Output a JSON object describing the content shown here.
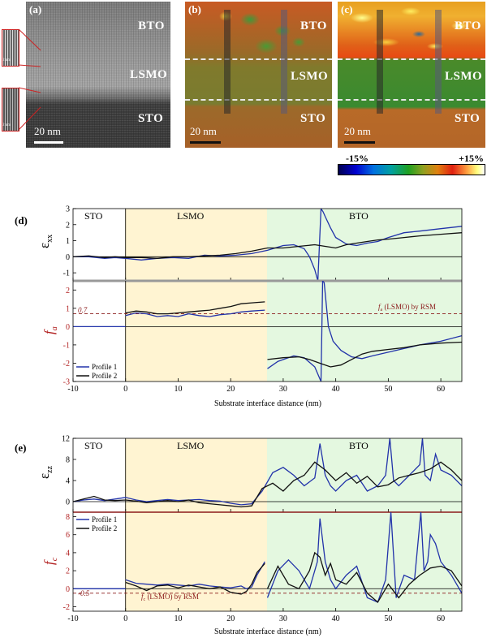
{
  "panel_a": {
    "label": "(a)",
    "bto": "BTO",
    "lsmo": "LSMO",
    "sto": "STO",
    "scale": "20 nm",
    "inset_scale": "2 nm"
  },
  "panel_b": {
    "label": "(b)",
    "bto": "BTO",
    "lsmo": "LSMO",
    "sto": "STO",
    "scale": "20 nm"
  },
  "panel_c": {
    "label": "(c)",
    "bto": "BTO",
    "lsmo": "LSMO",
    "sto": "STO",
    "scale": "20 nm"
  },
  "colorbar": {
    "min_label": "-15%",
    "max_label": "+15%"
  },
  "colors": {
    "profile1": "#2233aa",
    "profile2": "#111111",
    "lsmo_region": "#fff4d2",
    "bto_region": "#e4f8e0",
    "ref_line": "#8b1a1a"
  },
  "panel_d": {
    "label": "(d)",
    "regions": {
      "sto": "STO",
      "lsmo": "LSMO",
      "bto": "BTO"
    },
    "top_ylabel": "ε",
    "top_ylabel_sub": "xx",
    "bottom_ylabel": "f",
    "bottom_ylabel_sub": "a",
    "ref_value_label": "0.7",
    "ref_text": "f",
    "ref_text_sub": "a",
    "ref_text_rest": " (LSMO) by RSM",
    "xlabel": "Substrate interface distance (nm)",
    "legend": [
      "Profile 1",
      "Profile 2"
    ]
  },
  "panel_e": {
    "label": "(e)",
    "regions": {
      "sto": "STO",
      "lsmo": "LSMO",
      "bto": "BTO"
    },
    "top_ylabel": "ε",
    "top_ylabel_sub": "zz",
    "bottom_ylabel": "f",
    "bottom_ylabel_sub": "c",
    "ref_value_label": "-0.5",
    "ref_text": "f",
    "ref_text_sub": "c",
    "ref_text_rest": " (LSMO) by RSM",
    "xlabel": "Substrate interface distance (nm)",
    "legend": [
      "Profile 1",
      "Profile 2"
    ]
  },
  "chart_data": [
    {
      "id": "d_top",
      "type": "line",
      "ylabel": "ε_xx",
      "xlim": [
        -10,
        64
      ],
      "ylim": [
        -1.5,
        3
      ],
      "xticks": [
        -10,
        0,
        10,
        20,
        30,
        40,
        50,
        60
      ],
      "yticks": [
        -1,
        0,
        1,
        2,
        3
      ],
      "series": [
        {
          "name": "Profile 1",
          "x": [
            -10,
            -7,
            -4,
            -2,
            0,
            3,
            6,
            9,
            12,
            15,
            18,
            21,
            24,
            27,
            30,
            32,
            34,
            35,
            36,
            36.6,
            37.2,
            37.6,
            38,
            39,
            40,
            42,
            44,
            46,
            48,
            50,
            53,
            56,
            60,
            64
          ],
          "y": [
            0,
            0,
            -0.1,
            -0.05,
            -0.1,
            -0.2,
            -0.1,
            -0.05,
            -0.1,
            0.1,
            0.05,
            0.1,
            0.2,
            0.4,
            0.7,
            0.75,
            0.5,
            0,
            -0.8,
            -1.5,
            3,
            2.8,
            2.5,
            1.8,
            1.2,
            0.8,
            0.7,
            0.85,
            0.95,
            1.2,
            1.5,
            1.6,
            1.75,
            1.9
          ]
        },
        {
          "name": "Profile 2",
          "x": [
            -10,
            -7,
            -4,
            -2,
            0,
            3,
            6,
            9,
            12,
            15,
            18,
            21,
            24,
            27,
            30,
            33,
            36,
            38,
            40,
            42,
            44,
            46,
            48,
            50,
            53,
            56,
            60,
            64
          ],
          "y": [
            0,
            0.05,
            -0.05,
            0,
            -0.05,
            -0.05,
            -0.1,
            0,
            0,
            0.05,
            0.1,
            0.2,
            0.35,
            0.55,
            0.55,
            0.65,
            0.75,
            0.65,
            0.55,
            0.75,
            0.85,
            0.95,
            1.05,
            1.1,
            1.2,
            1.3,
            1.4,
            1.5
          ]
        }
      ]
    },
    {
      "id": "d_bottom",
      "type": "line",
      "ylabel": "f_a",
      "xlim": [
        -10,
        64
      ],
      "ylim": [
        -3,
        2.5
      ],
      "xticks": [
        -10,
        0,
        10,
        20,
        30,
        40,
        50,
        60
      ],
      "yticks": [
        -3,
        -2,
        -1,
        0,
        1,
        2
      ],
      "reference_line": 0.7,
      "series": [
        {
          "name": "Profile 1",
          "segments": [
            {
              "x": [
                -10,
                0
              ],
              "y": [
                0,
                0
              ]
            },
            {
              "x": [
                0,
                2,
                4,
                6,
                8,
                10,
                12,
                14,
                16,
                18,
                20,
                22,
                24,
                26.5
              ],
              "y": [
                0.6,
                0.75,
                0.7,
                0.55,
                0.6,
                0.55,
                0.7,
                0.6,
                0.55,
                0.65,
                0.7,
                0.8,
                0.85,
                0.9
              ]
            },
            {
              "x": [
                27,
                29,
                32,
                34,
                36,
                37.2,
                37.5,
                37.8,
                38,
                38.6,
                39.5,
                41,
                43,
                45,
                47,
                50,
                53,
                56,
                60,
                64
              ],
              "y": [
                -2.3,
                -1.9,
                -1.6,
                -1.7,
                -2.2,
                -3,
                2.5,
                2.4,
                1.8,
                0,
                -0.8,
                -1.3,
                -1.65,
                -1.75,
                -1.6,
                -1.4,
                -1.2,
                -1,
                -0.8,
                -0.5
              ]
            }
          ]
        },
        {
          "name": "Profile 2",
          "segments": [
            {
              "x": [
                0,
                2,
                4,
                6,
                8,
                10,
                12,
                14,
                16,
                18,
                20,
                22,
                24,
                26.5
              ],
              "y": [
                0.75,
                0.85,
                0.8,
                0.7,
                0.7,
                0.75,
                0.8,
                0.85,
                0.9,
                1,
                1.1,
                1.25,
                1.3,
                1.35
              ]
            },
            {
              "x": [
                27,
                30,
                33,
                35,
                37,
                39,
                41,
                43,
                45,
                47,
                50,
                53,
                56,
                60,
                64
              ],
              "y": [
                -1.8,
                -1.7,
                -1.65,
                -1.8,
                -2,
                -2.2,
                -2.1,
                -1.8,
                -1.5,
                -1.35,
                -1.25,
                -1.15,
                -1,
                -0.9,
                -0.85
              ]
            }
          ]
        }
      ],
      "legend": [
        "Profile 1",
        "Profile 2"
      ]
    },
    {
      "id": "e_top",
      "type": "line",
      "ylabel": "ε_zz",
      "xlim": [
        -10,
        64
      ],
      "ylim": [
        -2,
        12
      ],
      "xticks": [
        -10,
        0,
        10,
        20,
        30,
        40,
        50,
        60
      ],
      "yticks": [
        0,
        4,
        8,
        12
      ],
      "series": [
        {
          "name": "Profile 1",
          "x": [
            -10,
            -8,
            -6,
            -4,
            -2,
            0,
            2,
            4,
            6,
            8,
            10,
            12,
            14,
            16,
            18,
            20,
            22,
            24,
            26,
            28,
            30,
            32,
            34,
            36,
            37,
            38,
            39,
            40,
            42,
            44,
            46,
            48,
            49.5,
            50.3,
            51,
            52,
            54,
            56,
            56.5,
            57,
            58,
            59,
            60,
            62,
            64
          ],
          "y": [
            0,
            0.3,
            0.5,
            0.2,
            0.5,
            0.8,
            0.3,
            0,
            0.2,
            0.4,
            0.2,
            0.3,
            0.4,
            0.2,
            0.1,
            -0.3,
            -0.6,
            -0.4,
            2,
            5.5,
            6.5,
            5,
            3,
            4.5,
            11,
            5,
            3,
            2,
            4,
            5,
            2,
            3,
            5,
            12,
            4,
            3,
            5,
            7,
            12,
            5,
            4,
            9,
            6,
            5,
            3
          ]
        },
        {
          "name": "Profile 2",
          "x": [
            -10,
            -8,
            -6,
            -4,
            -2,
            0,
            2,
            4,
            6,
            8,
            10,
            12,
            14,
            16,
            18,
            20,
            22,
            24,
            26,
            28,
            30,
            32,
            34,
            36,
            38,
            40,
            42,
            44,
            46,
            48,
            50,
            52,
            54,
            56,
            58,
            60,
            62,
            64
          ],
          "y": [
            0,
            0.5,
            1,
            0.3,
            0.2,
            0.3,
            0.1,
            -0.2,
            0,
            0.2,
            0,
            0.3,
            -0.2,
            -0.4,
            -0.6,
            -0.8,
            -1,
            -0.8,
            2.5,
            3.5,
            2,
            4,
            5,
            7.5,
            6,
            4,
            5.5,
            3.5,
            4.8,
            2.8,
            3.2,
            4.5,
            5,
            5.5,
            6.2,
            7.5,
            6,
            4
          ]
        }
      ]
    },
    {
      "id": "e_bottom",
      "type": "line",
      "ylabel": "f_c",
      "xlim": [
        -10,
        64
      ],
      "ylim": [
        -2.5,
        8.5
      ],
      "xticks": [
        -10,
        0,
        10,
        20,
        30,
        40,
        50,
        60
      ],
      "yticks": [
        -2,
        0,
        2,
        4,
        6,
        8
      ],
      "reference_line": -0.5,
      "series": [
        {
          "name": "Profile 1",
          "segments": [
            {
              "x": [
                -10,
                0
              ],
              "y": [
                0,
                0
              ]
            },
            {
              "x": [
                0,
                2,
                4,
                6,
                8,
                10,
                12,
                14,
                16,
                18,
                20,
                22,
                23,
                24,
                25,
                26.5
              ],
              "y": [
                1,
                0.6,
                0.5,
                0.4,
                0.5,
                0.4,
                0.3,
                0.5,
                0.3,
                0.2,
                0.1,
                0.3,
                0,
                0.2,
                1.5,
                3
              ]
            },
            {
              "x": [
                27,
                29,
                31,
                33,
                35,
                36.5,
                37,
                38,
                39,
                40,
                42,
                44,
                46,
                48,
                49.5,
                50.5,
                51.5,
                53,
                55,
                56.2,
                56.8,
                57.5,
                58,
                59,
                60,
                62,
                64
              ],
              "y": [
                -1,
                2,
                3.2,
                2,
                0,
                3,
                7.8,
                3,
                1,
                0,
                1.5,
                2.5,
                -1,
                -1.5,
                1,
                8.5,
                -1,
                1.5,
                1,
                8.5,
                2,
                3,
                6,
                5,
                3,
                1.5,
                -0.5
              ]
            }
          ]
        },
        {
          "name": "Profile 2",
          "segments": [
            {
              "x": [
                0,
                2,
                4,
                6,
                8,
                10,
                12,
                14,
                16,
                18,
                20,
                22,
                23,
                24,
                25,
                26.5
              ],
              "y": [
                0.7,
                0.3,
                -0.2,
                0.3,
                0.4,
                0.1,
                0.4,
                0.2,
                0,
                0.2,
                -0.4,
                -0.6,
                -0.3,
                0.5,
                1.8,
                2.8
              ]
            },
            {
              "x": [
                27,
                29,
                31,
                33,
                35,
                36,
                37,
                38,
                39,
                40,
                42,
                44,
                46,
                48,
                50,
                52,
                54,
                56,
                58,
                60,
                62,
                64
              ],
              "y": [
                0,
                2.5,
                0.5,
                0,
                2,
                4,
                3.5,
                1.5,
                2.8,
                1,
                0.5,
                1.8,
                -0.5,
                -1.5,
                0.5,
                -1,
                0.5,
                1.5,
                2.3,
                2.5,
                2,
                0.3
              ]
            }
          ]
        }
      ],
      "legend": [
        "Profile 1",
        "Profile 2"
      ]
    }
  ]
}
